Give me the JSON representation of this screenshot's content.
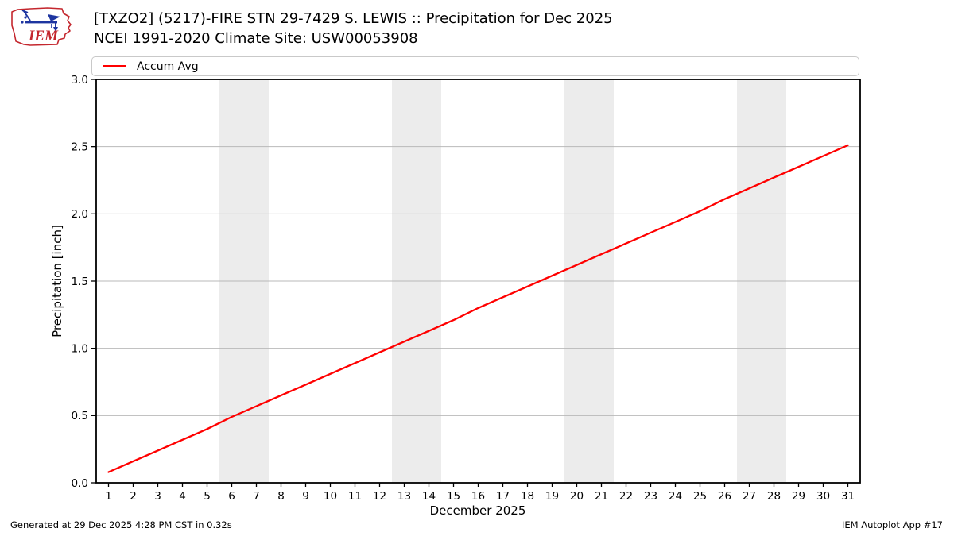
{
  "logo": {
    "text": "IEM",
    "outline_color": "#c4272e",
    "vane_color": "#1d35a0",
    "text_color": "#c4272e"
  },
  "header": {
    "title_line1": "[TXZO2] (5217)-FIRE STN 29-7429 S. LEWIS :: Precipitation for Dec 2025",
    "title_line2": "NCEI 1991-2020 Climate Site: USW00053908"
  },
  "legend": {
    "items": [
      {
        "label": "Accum Avg",
        "color": "#ff0000"
      }
    ]
  },
  "footer": {
    "left": "Generated at 29 Dec 2025 4:28 PM CST in 0.32s",
    "right": "IEM Autoplot App #17"
  },
  "chart_data": {
    "type": "line",
    "title": "",
    "xlabel": "December 2025",
    "ylabel": "Precipitation [inch]",
    "xlim": [
      0.5,
      31.5
    ],
    "ylim": [
      0.0,
      3.0
    ],
    "xticks": [
      1,
      2,
      3,
      4,
      5,
      6,
      7,
      8,
      9,
      10,
      11,
      12,
      13,
      14,
      15,
      16,
      17,
      18,
      19,
      20,
      21,
      22,
      23,
      24,
      25,
      26,
      27,
      28,
      29,
      30,
      31
    ],
    "yticks": [
      0.0,
      0.5,
      1.0,
      1.5,
      2.0,
      2.5,
      3.0
    ],
    "ytick_labels": [
      "0.0",
      "0.5",
      "1.0",
      "1.5",
      "2.0",
      "2.5",
      "3.0"
    ],
    "grid": "horizontal",
    "legend_position": "top",
    "weekend_bands": [
      [
        5.5,
        7.5
      ],
      [
        12.5,
        14.5
      ],
      [
        19.5,
        21.5
      ],
      [
        26.5,
        28.5
      ]
    ],
    "band_color": "#ececec",
    "grid_color": "#b9b9b9",
    "frame_color": "#000000",
    "series": [
      {
        "name": "Accum Avg",
        "color": "#ff0000",
        "x": [
          1,
          2,
          3,
          4,
          5,
          6,
          7,
          8,
          9,
          10,
          11,
          12,
          13,
          14,
          15,
          16,
          17,
          18,
          19,
          20,
          21,
          22,
          23,
          24,
          25,
          26,
          27,
          28,
          29,
          30,
          31
        ],
        "values": [
          0.08,
          0.16,
          0.24,
          0.32,
          0.4,
          0.49,
          0.57,
          0.65,
          0.73,
          0.81,
          0.89,
          0.97,
          1.05,
          1.13,
          1.21,
          1.3,
          1.38,
          1.46,
          1.54,
          1.62,
          1.7,
          1.78,
          1.86,
          1.94,
          2.02,
          2.11,
          2.19,
          2.27,
          2.35,
          2.43,
          2.51
        ]
      }
    ]
  }
}
